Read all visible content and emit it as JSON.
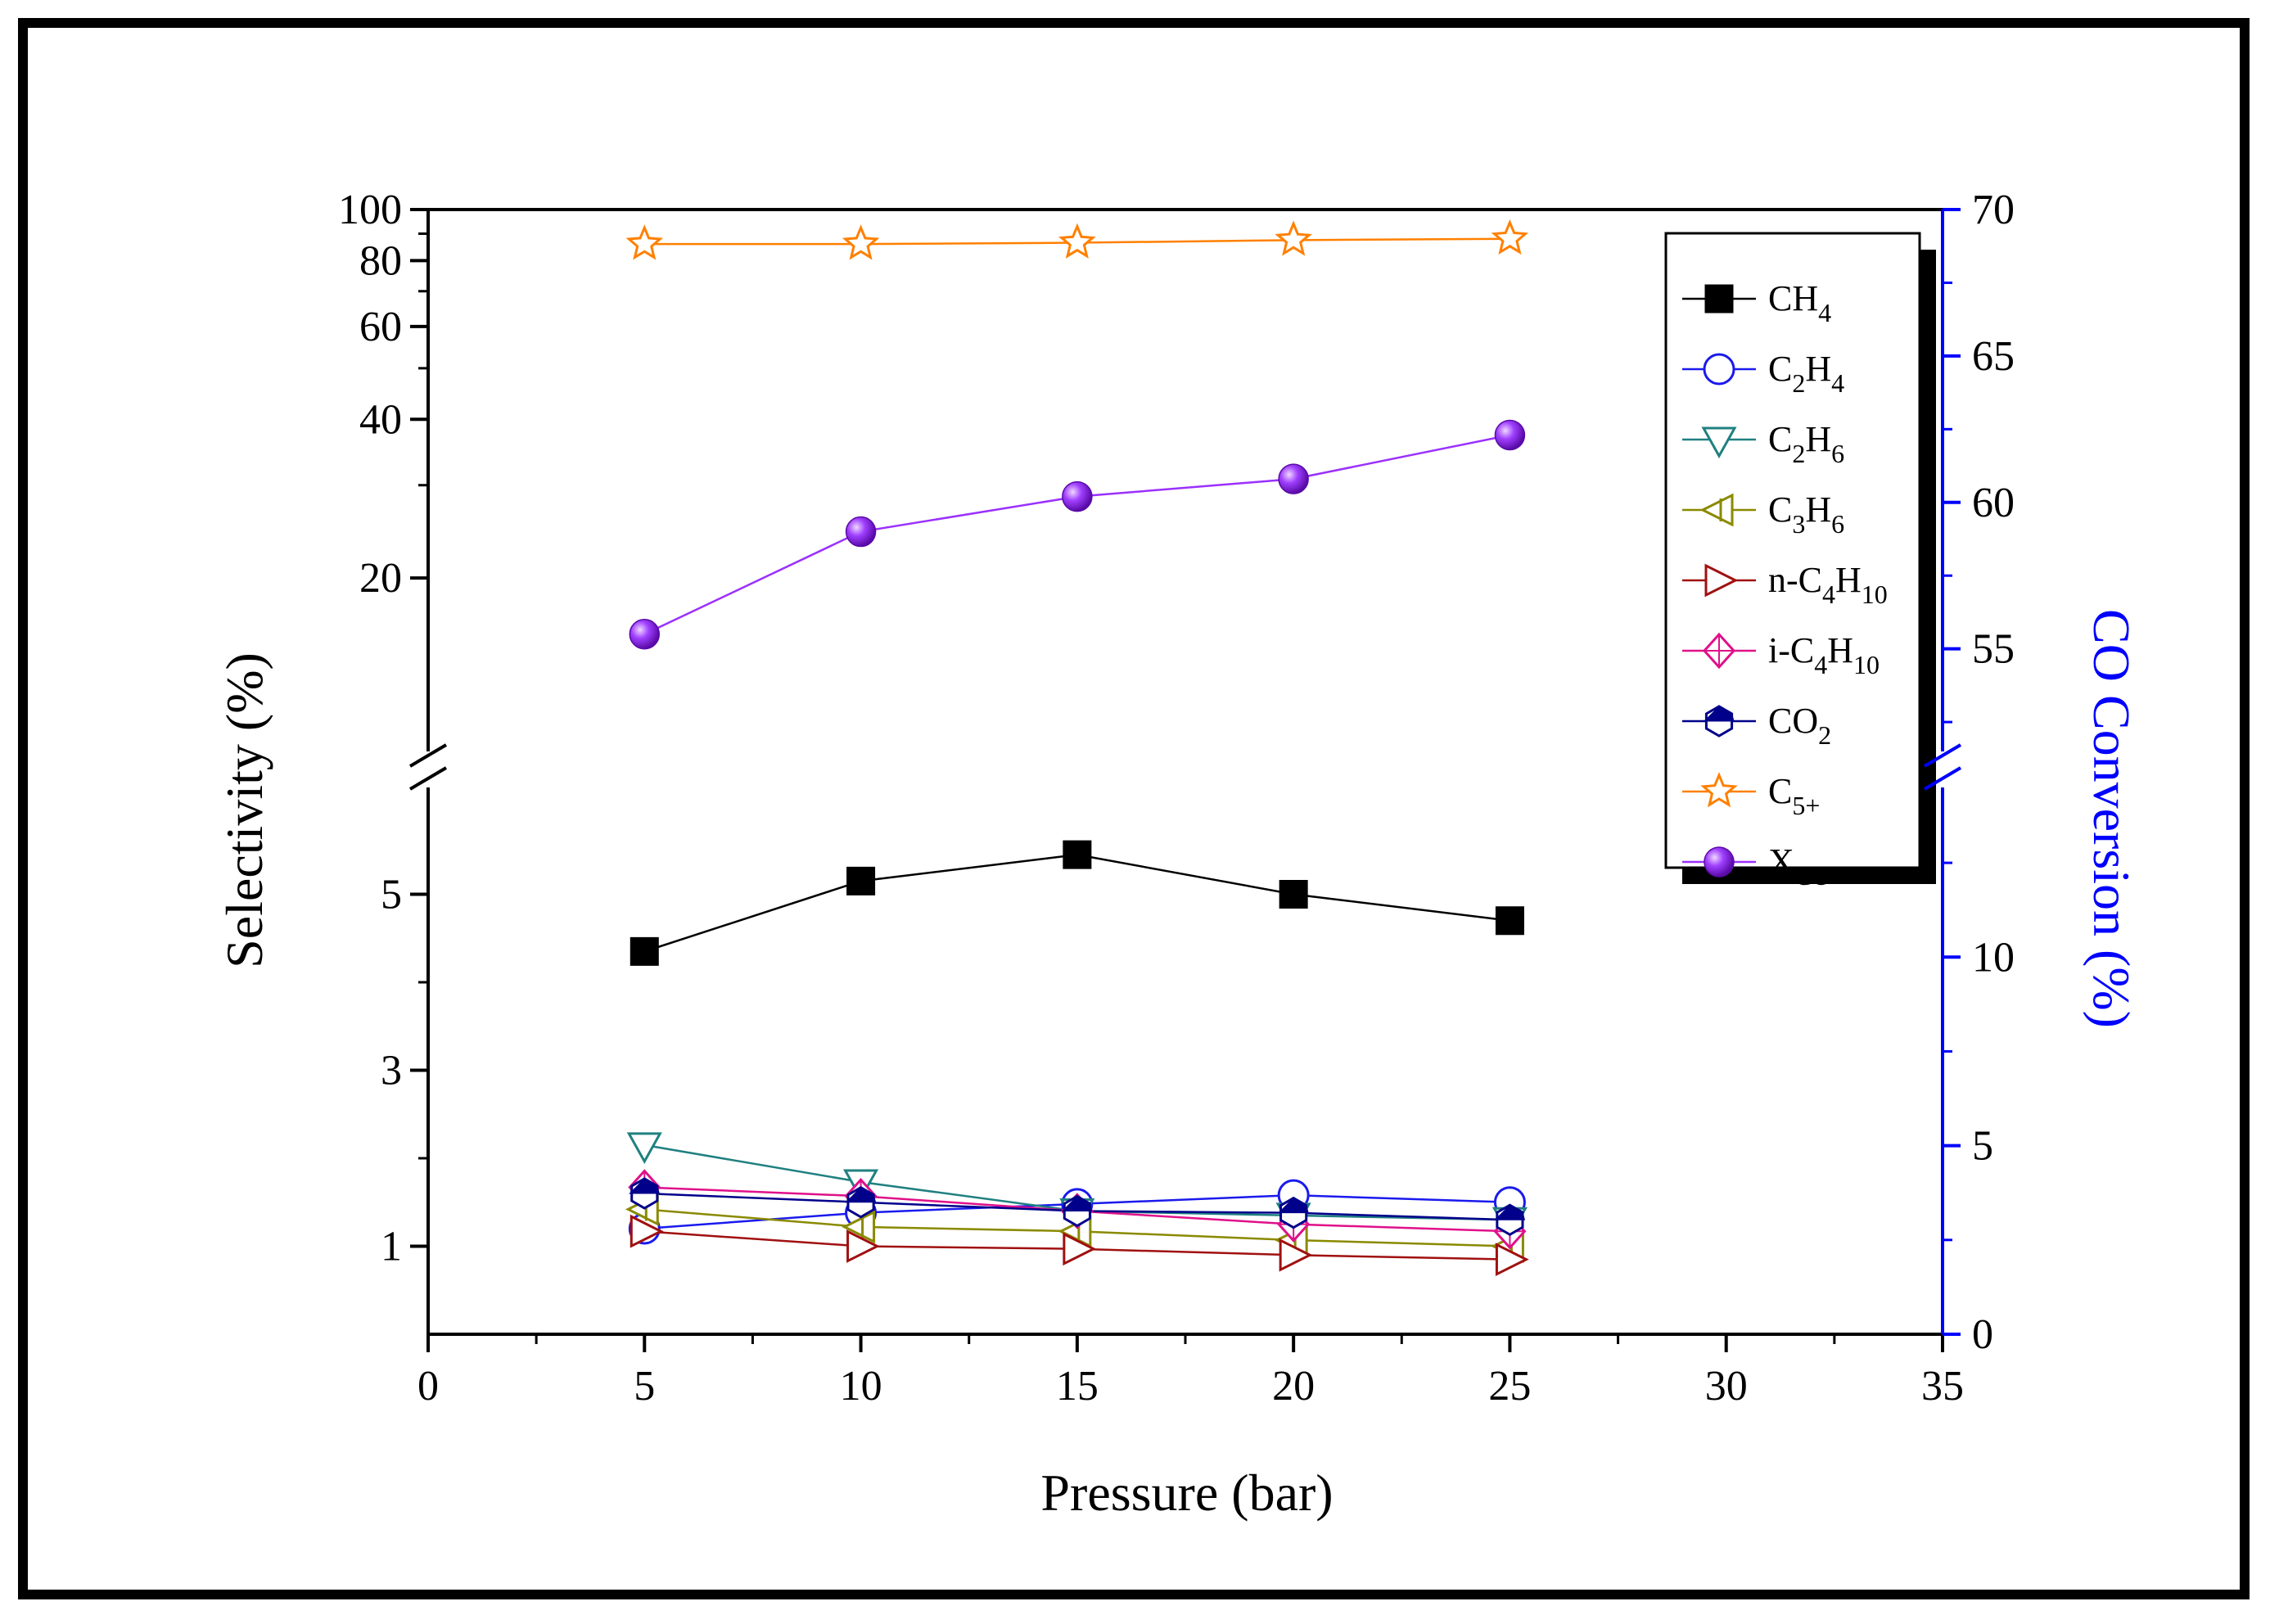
{
  "chart_data": {
    "type": "line",
    "xlabel": "Pressure (bar)",
    "ylabel_left": "Selectivity (%)",
    "ylabel_right": "CO Conversion (%)",
    "xlim": [
      0,
      35
    ],
    "x_ticks": [
      "0",
      "5",
      "10",
      "15",
      "20",
      "25",
      "30",
      "35"
    ],
    "y_left_ticks_upper": [
      "100",
      "80",
      "60",
      "40",
      "20"
    ],
    "y_left_ticks_lower": [
      "5",
      "3",
      "1"
    ],
    "y_right_ticks_upper": [
      "70",
      "65",
      "60",
      "55"
    ],
    "y_right_ticks_lower": [
      "10",
      "5",
      "0"
    ],
    "y_left_ranges": {
      "lower": [
        0,
        6
      ],
      "upper": [
        10,
        100
      ]
    },
    "y_right_ranges": {
      "lower": [
        0,
        14
      ],
      "upper": [
        52,
        70
      ]
    },
    "x": [
      5,
      10,
      15,
      20,
      25
    ],
    "series": [
      {
        "key": "ch4",
        "label_main": "CH",
        "label_sub": "4",
        "label_tail": "",
        "values": [
          4.35,
          5.15,
          5.45,
          5.0,
          4.7
        ],
        "color": "#000000",
        "marker": "square-filled",
        "axis": "left"
      },
      {
        "key": "c2h4",
        "label_main": "C",
        "label_sub": "2",
        "label_tail": "H",
        "label_sub2": "4",
        "values": [
          1.2,
          1.38,
          1.48,
          1.58,
          1.5
        ],
        "color": "#1a1aee",
        "marker": "circle-open",
        "axis": "left"
      },
      {
        "key": "c2h6",
        "label_main": "C",
        "label_sub": "2",
        "label_tail": "H",
        "label_sub2": "6",
        "values": [
          2.15,
          1.73,
          1.4,
          1.35,
          1.3
        ],
        "color": "#208080",
        "marker": "triangle-down-open",
        "axis": "left"
      },
      {
        "key": "c3h6",
        "label_main": "C",
        "label_sub": "3",
        "label_tail": "H",
        "label_sub2": "6",
        "values": [
          1.42,
          1.22,
          1.17,
          1.07,
          1.0
        ],
        "color": "#8a8a00",
        "marker": "triangle-left-open",
        "axis": "left"
      },
      {
        "key": "nc4h10",
        "label_main": "n-C",
        "label_sub": "4",
        "label_tail": "H",
        "label_sub2": "10",
        "values": [
          1.17,
          1.0,
          0.97,
          0.9,
          0.85
        ],
        "color": "#a01010",
        "marker": "triangle-right-open",
        "axis": "left"
      },
      {
        "key": "ic4h10",
        "label_main": "i-C",
        "label_sub": "4",
        "label_tail": "H",
        "label_sub2": "10",
        "values": [
          1.67,
          1.57,
          1.4,
          1.25,
          1.17
        ],
        "color": "#e0108a",
        "marker": "diamond-open",
        "axis": "left"
      },
      {
        "key": "co2",
        "label_main": "CO",
        "label_sub": "2",
        "label_tail": "",
        "values": [
          1.6,
          1.5,
          1.4,
          1.38,
          1.3
        ],
        "color": "#00008b",
        "marker": "hexagon-half",
        "axis": "left"
      },
      {
        "key": "c5",
        "label_main": "C",
        "label_sub": "5+",
        "label_tail": "",
        "values": [
          86,
          86,
          86.5,
          87.5,
          88
        ],
        "color": "#ff8000",
        "marker": "star-open",
        "axis": "left"
      },
      {
        "key": "xco",
        "label_main": "X",
        "label_sub": "CO",
        "label_tail": "",
        "values": [
          55.5,
          59.0,
          60.2,
          60.8,
          62.3
        ],
        "color": "#9b30ff",
        "marker": "sphere",
        "axis": "right"
      }
    ],
    "legend_position": "top-right"
  },
  "colors": {
    "axis_right": "#0000ff",
    "axis_left": "#000000"
  }
}
